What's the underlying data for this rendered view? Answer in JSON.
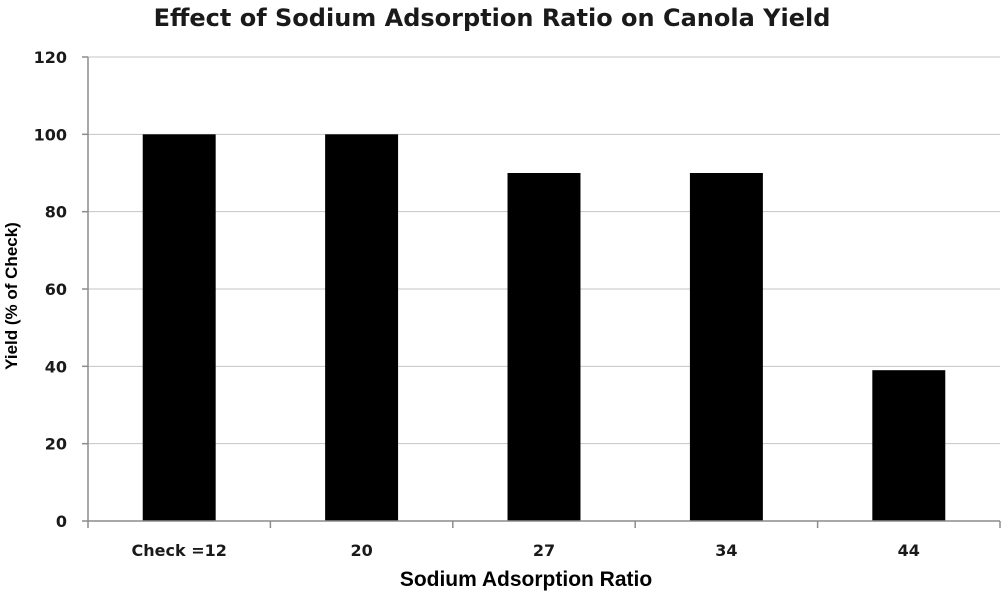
{
  "chart_data": {
    "type": "bar",
    "title": "Effect of Sodium Adsorption Ratio on Canola Yield",
    "xlabel": "Sodium Adsorption Ratio",
    "ylabel": "Yield (% of Check)",
    "categories": [
      "Check =12",
      "20",
      "27",
      "34",
      "44"
    ],
    "values": [
      100,
      100,
      90,
      90,
      39
    ],
    "ylim": [
      0,
      120
    ],
    "yticks": [
      0,
      20,
      40,
      60,
      80,
      100,
      120
    ],
    "grid": true,
    "legend": "none",
    "colors": {
      "bar": "#000000",
      "grid": "#c4c4c4",
      "axis": "#8c8c8c",
      "text": "#1a1a1a"
    }
  }
}
